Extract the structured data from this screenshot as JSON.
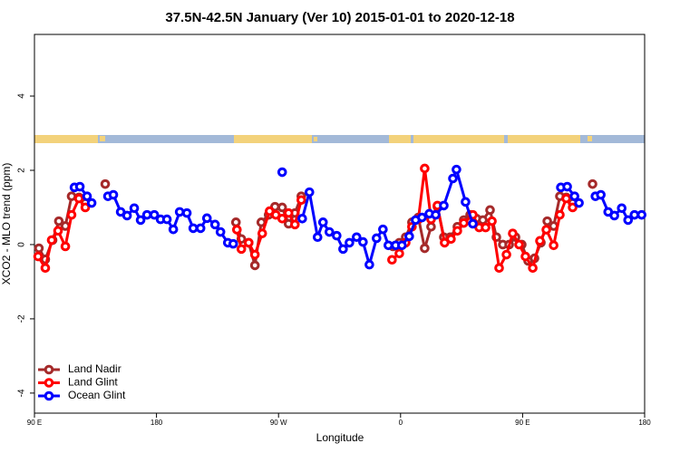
{
  "chart_data": {
    "type": "line",
    "title": "37.5N-42.5N January (Ver 10)   2015-01-01 to 2020-12-18",
    "x_label": "Longitude",
    "y_label": "XCO2 - MLO trend (ppm)",
    "xlim": [
      90,
      540
    ],
    "ylim": [
      -4.54,
      5.66
    ],
    "xticks": [
      {
        "value": 90,
        "label": "90 E"
      },
      {
        "value": 180,
        "label": "180"
      },
      {
        "value": 270,
        "label": "90 W"
      },
      {
        "value": 360,
        "label": "0"
      },
      {
        "value": 450,
        "label": "90 E"
      },
      {
        "value": 540,
        "label": "180"
      }
    ],
    "yticks": [
      -4,
      -2,
      0,
      2,
      4
    ],
    "legend": "bottomleft",
    "series": [
      {
        "name": "Land Nadir",
        "color": "#a52a2a",
        "x": [
          93.3,
          98,
          103.4,
          108,
          112.8,
          117.4,
          122.8,
          127.5,
          null,
          142.2,
          null,
          238.6,
          242.6,
          248,
          252.6,
          257.3,
          262.7,
          267.4,
          272.7,
          277.4,
          282.1,
          286.8,
          null,
          354.4,
          359.1,
          363.8,
          368.4,
          373.1,
          377.8,
          382.5,
          387.2,
          391.9,
          396.6,
          401.9,
          406.6,
          411.3,
          416,
          420.7,
          426,
          430.7,
          435.4,
          440.1,
          444.8,
          449.4,
          454.1,
          458.8,
          463.5,
          468.2,
          472.9,
          477.5,
          482.2,
          486.9,
          null,
          501.6
        ],
        "values": [
          -0.1,
          -0.4,
          0.12,
          0.63,
          0.5,
          1.3,
          1.27,
          1.12,
          null,
          1.63,
          null,
          0.6,
          0.15,
          0.05,
          -0.56,
          0.6,
          0.8,
          1.02,
          1.0,
          0.56,
          0.85,
          1.3,
          null,
          -0.05,
          0.05,
          0.2,
          0.6,
          0.73,
          -0.1,
          0.48,
          1.02,
          0.2,
          0.2,
          0.48,
          0.66,
          0.8,
          0.7,
          0.66,
          0.93,
          0.2,
          0.0,
          0.0,
          0.2,
          0.0,
          -0.44,
          -0.37,
          0.05,
          0.63,
          0.5,
          1.3,
          1.27,
          1.12,
          null,
          1.63
        ]
      },
      {
        "name": "Land Glint",
        "color": "#ff0000",
        "x": [
          92.7,
          98,
          102.7,
          107.4,
          112.8,
          117.4,
          122.8,
          127.5,
          null,
          239.3,
          242.6,
          248,
          252.6,
          258,
          263.4,
          268,
          272.7,
          277.4,
          282.1,
          286.8,
          null,
          353.7,
          359.1,
          363.8,
          368.4,
          373.1,
          377.8,
          382.5,
          387.2,
          392.5,
          397.2,
          401.9,
          406.6,
          413.3,
          418,
          422.7,
          427.4,
          432.7,
          438.1,
          442.7,
          447.4,
          452.1,
          457.5,
          462.8,
          467.5,
          472.9,
          477.5,
          482.2,
          486.9
        ],
        "values": [
          -0.32,
          -0.63,
          0.12,
          0.37,
          -0.05,
          0.8,
          1.24,
          1.0,
          null,
          0.4,
          -0.12,
          0.05,
          -0.27,
          0.3,
          0.9,
          0.8,
          0.7,
          0.85,
          0.54,
          1.2,
          null,
          -0.41,
          -0.24,
          0.05,
          0.48,
          0.68,
          2.05,
          0.68,
          1.05,
          0.05,
          0.15,
          0.37,
          0.58,
          0.8,
          0.46,
          0.46,
          0.63,
          -0.63,
          -0.27,
          0.3,
          0.0,
          -0.32,
          -0.63,
          0.1,
          0.4,
          -0.02,
          0.8,
          1.24,
          1.0
        ]
      },
      {
        "name": "Ocean Glint",
        "color": "#0000ff",
        "x": [
          119.5,
          123.5,
          128.8,
          132.2,
          null,
          144.2,
          148.2,
          153.6,
          158.3,
          163.6,
          168.3,
          173,
          178.4,
          183,
          187.7,
          192.4,
          197.1,
          202.4,
          207.1,
          212.5,
          217.2,
          223.2,
          227.2,
          232.6,
          236.6,
          null,
          272.7,
          null,
          287.5,
          292.8,
          298.8,
          302.8,
          307.5,
          312.9,
          317.6,
          322.3,
          327.6,
          332.3,
          337,
          342.3,
          347,
          351,
          356.4,
          361,
          366.4,
          371.1,
          375.8,
          381.2,
          385.9,
          391.9,
          398.6,
          401.2,
          407.9,
          413.3,
          null,
          478.2,
          482.9,
          488.3,
          491.6,
          null,
          503.7,
          507.7,
          513.1,
          517.7,
          523.1,
          527.8,
          532.5,
          537.8
        ],
        "values": [
          1.54,
          1.56,
          1.3,
          1.12,
          null,
          1.3,
          1.34,
          0.88,
          0.78,
          0.98,
          0.66,
          0.8,
          0.8,
          0.68,
          0.68,
          0.41,
          0.88,
          0.85,
          0.44,
          0.44,
          0.71,
          0.54,
          0.34,
          0.05,
          0.02,
          null,
          1.95,
          null,
          0.7,
          1.41,
          0.2,
          0.6,
          0.34,
          0.24,
          -0.12,
          0.05,
          0.2,
          0.07,
          -0.54,
          0.17,
          0.41,
          -0.02,
          -0.02,
          -0.02,
          0.22,
          0.66,
          0.73,
          0.83,
          0.8,
          1.05,
          1.78,
          2.02,
          1.15,
          0.56,
          null,
          1.54,
          1.56,
          1.3,
          1.12,
          null,
          1.3,
          1.34,
          0.88,
          0.78,
          0.98,
          0.66,
          0.8,
          0.8
        ]
      }
    ]
  }
}
